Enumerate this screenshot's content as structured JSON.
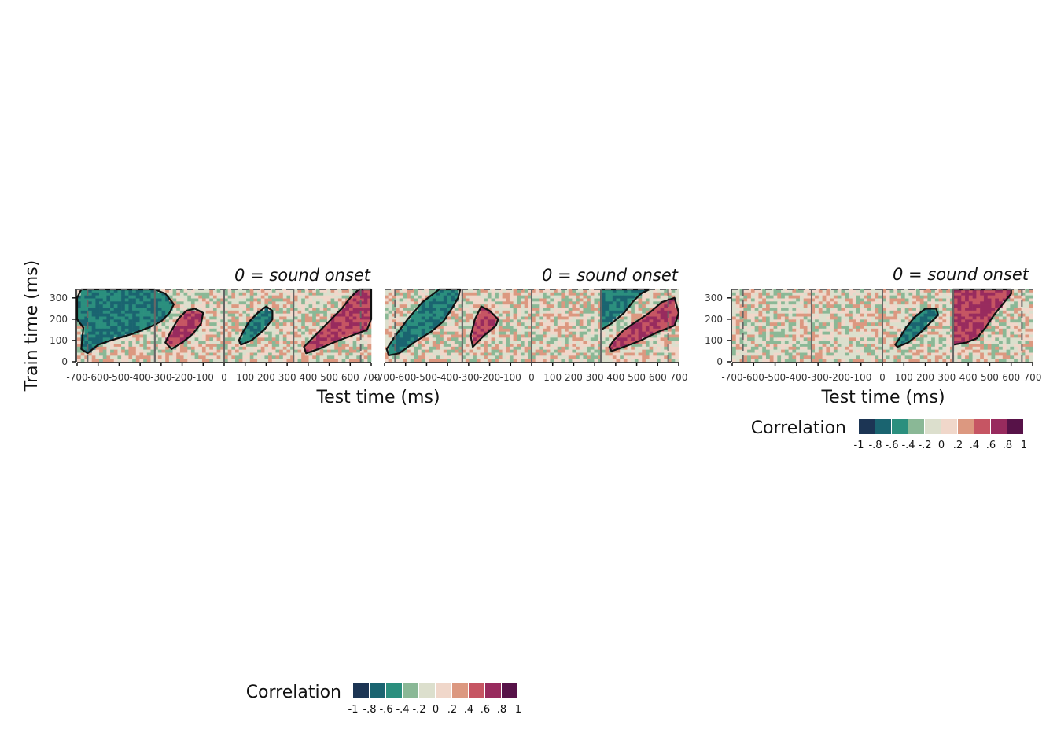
{
  "chart_data": [
    {
      "type": "heatmap",
      "panel": "left",
      "title": "0 = sound onset",
      "xlabel": "Test time (ms)",
      "ylabel": "Train time (ms)",
      "xlim": [
        -700,
        700
      ],
      "ylim": [
        0,
        340
      ],
      "x_ticks": [
        "-700",
        "-600",
        "-500",
        "-400",
        "-300",
        "-200",
        "-100",
        "0",
        "100",
        "200",
        "300",
        "400",
        "500",
        "600",
        "700"
      ],
      "y_ticks": [
        "0",
        "100",
        "200",
        "300"
      ],
      "dashed_verticals_ms": [
        -650,
        -330,
        330,
        650
      ],
      "solid_verticals_ms": [
        -330,
        0,
        330
      ],
      "clusters": [
        {
          "sign": "negative",
          "value": -0.6,
          "polygon": [
            [
              -680,
              60
            ],
            [
              -650,
              40
            ],
            [
              -600,
              80
            ],
            [
              -540,
              100
            ],
            [
              -440,
              130
            ],
            [
              -360,
              160
            ],
            [
              -300,
              190
            ],
            [
              -260,
              230
            ],
            [
              -240,
              270
            ],
            [
              -280,
              320
            ],
            [
              -330,
              340
            ],
            [
              -680,
              340
            ],
            [
              -700,
              300
            ],
            [
              -700,
              200
            ],
            [
              -670,
              160
            ]
          ]
        },
        {
          "sign": "positive",
          "value": 0.6,
          "polygon": [
            [
              -250,
              60
            ],
            [
              -200,
              90
            ],
            [
              -150,
              130
            ],
            [
              -110,
              180
            ],
            [
              -100,
              230
            ],
            [
              -140,
              250
            ],
            [
              -180,
              240
            ],
            [
              -220,
              200
            ],
            [
              -260,
              130
            ],
            [
              -280,
              90
            ]
          ]
        },
        {
          "sign": "negative",
          "value": -0.6,
          "polygon": [
            [
              80,
              80
            ],
            [
              130,
              100
            ],
            [
              190,
              150
            ],
            [
              230,
              200
            ],
            [
              230,
              240
            ],
            [
              200,
              260
            ],
            [
              160,
              230
            ],
            [
              120,
              190
            ],
            [
              90,
              140
            ],
            [
              70,
              100
            ]
          ]
        },
        {
          "sign": "positive",
          "value": 0.6,
          "polygon": [
            [
              390,
              40
            ],
            [
              450,
              60
            ],
            [
              520,
              90
            ],
            [
              600,
              120
            ],
            [
              680,
              150
            ],
            [
              700,
              200
            ],
            [
              700,
              340
            ],
            [
              640,
              340
            ],
            [
              600,
              300
            ],
            [
              560,
              250
            ],
            [
              520,
              210
            ],
            [
              470,
              160
            ],
            [
              420,
              110
            ],
            [
              380,
              70
            ]
          ]
        }
      ],
      "colorbar": {
        "label": "Correlation",
        "ticks": [
          "-1",
          "-.8",
          "-.6",
          "-.4",
          "-.2",
          "0",
          ".2",
          ".4",
          ".6",
          ".8",
          "1"
        ],
        "values": [
          -1,
          -0.8,
          -0.6,
          -0.4,
          -0.2,
          0,
          0.2,
          0.4,
          0.6,
          0.8,
          1
        ]
      }
    },
    {
      "type": "heatmap",
      "panel": "middle",
      "title": "0 = sound onset",
      "xlabel": "",
      "ylabel": "",
      "xlim": [
        -700,
        700
      ],
      "ylim": [
        0,
        340
      ],
      "x_ticks": [
        "-700",
        "-600",
        "-500",
        "-400",
        "-300",
        "-200",
        "-100",
        "0",
        "100",
        "200",
        "300",
        "400",
        "500",
        "600",
        "700"
      ],
      "dashed_verticals_ms": [
        -650,
        -330,
        330,
        650
      ],
      "solid_verticals_ms": [
        -330,
        0,
        330
      ],
      "clusters": [
        {
          "sign": "negative",
          "value": -0.6,
          "polygon": [
            [
              -680,
              30
            ],
            [
              -630,
              40
            ],
            [
              -560,
              90
            ],
            [
              -480,
              140
            ],
            [
              -420,
              190
            ],
            [
              -380,
              250
            ],
            [
              -350,
              300
            ],
            [
              -340,
              340
            ],
            [
              -440,
              340
            ],
            [
              -520,
              280
            ],
            [
              -590,
              200
            ],
            [
              -650,
              120
            ],
            [
              -690,
              60
            ]
          ]
        },
        {
          "sign": "positive",
          "value": 0.6,
          "polygon": [
            [
              -280,
              70
            ],
            [
              -230,
              120
            ],
            [
              -170,
              170
            ],
            [
              -160,
              200
            ],
            [
              -200,
              240
            ],
            [
              -240,
              260
            ],
            [
              -270,
              200
            ],
            [
              -290,
              120
            ]
          ]
        },
        {
          "sign": "negative",
          "value": -0.6,
          "polygon": [
            [
              330,
              150
            ],
            [
              380,
              180
            ],
            [
              440,
              230
            ],
            [
              480,
              280
            ],
            [
              520,
              320
            ],
            [
              560,
              340
            ],
            [
              330,
              340
            ]
          ]
        },
        {
          "sign": "positive",
          "value": 0.6,
          "polygon": [
            [
              380,
              50
            ],
            [
              440,
              70
            ],
            [
              520,
              100
            ],
            [
              600,
              140
            ],
            [
              680,
              170
            ],
            [
              700,
              230
            ],
            [
              680,
              300
            ],
            [
              620,
              280
            ],
            [
              560,
              230
            ],
            [
              500,
              190
            ],
            [
              440,
              150
            ],
            [
              390,
              100
            ],
            [
              370,
              70
            ]
          ]
        }
      ]
    },
    {
      "type": "heatmap",
      "panel": "right",
      "title": "0 = sound onset",
      "xlabel": "Test time (ms)",
      "ylabel": "",
      "xlim": [
        -700,
        700
      ],
      "ylim": [
        0,
        340
      ],
      "x_ticks": [
        "-700",
        "-600",
        "-500",
        "-400",
        "-300",
        "-200",
        "-100",
        "0",
        "100",
        "200",
        "300",
        "400",
        "500",
        "600",
        "700"
      ],
      "y_ticks": [
        "0",
        "100",
        "200",
        "300"
      ],
      "dashed_verticals_ms": [
        -650,
        -330,
        330,
        650
      ],
      "solid_verticals_ms": [
        -330,
        0,
        330
      ],
      "clusters": [
        {
          "sign": "negative",
          "value": -0.6,
          "polygon": [
            [
              70,
              70
            ],
            [
              120,
              90
            ],
            [
              170,
              130
            ],
            [
              220,
              180
            ],
            [
              260,
              220
            ],
            [
              250,
              250
            ],
            [
              200,
              250
            ],
            [
              150,
              210
            ],
            [
              110,
              160
            ],
            [
              80,
              110
            ],
            [
              60,
              80
            ]
          ]
        },
        {
          "sign": "positive",
          "value": 0.6,
          "polygon": [
            [
              330,
              80
            ],
            [
              390,
              90
            ],
            [
              440,
              110
            ],
            [
              480,
              160
            ],
            [
              520,
              220
            ],
            [
              560,
              270
            ],
            [
              600,
              320
            ],
            [
              600,
              340
            ],
            [
              330,
              340
            ]
          ]
        }
      ],
      "colorbar": {
        "label": "Correlation",
        "ticks": [
          "-1",
          "-.8",
          "-.6",
          "-.4",
          "-.2",
          "0",
          ".2",
          ".4",
          ".6",
          ".8",
          "1"
        ],
        "values": [
          -1,
          -0.8,
          -0.6,
          -0.4,
          -0.2,
          0,
          0.2,
          0.4,
          0.6,
          0.8,
          1
        ]
      }
    }
  ],
  "colors": {
    "palette": [
      "#1c3554",
      "#1a6470",
      "#2b8f7e",
      "#8ab896",
      "#dcdfcd",
      "#f0d7ca",
      "#dc9880",
      "#c65563",
      "#982b5e",
      "#571248"
    ],
    "contour": "#111111",
    "axis": "#666666"
  }
}
